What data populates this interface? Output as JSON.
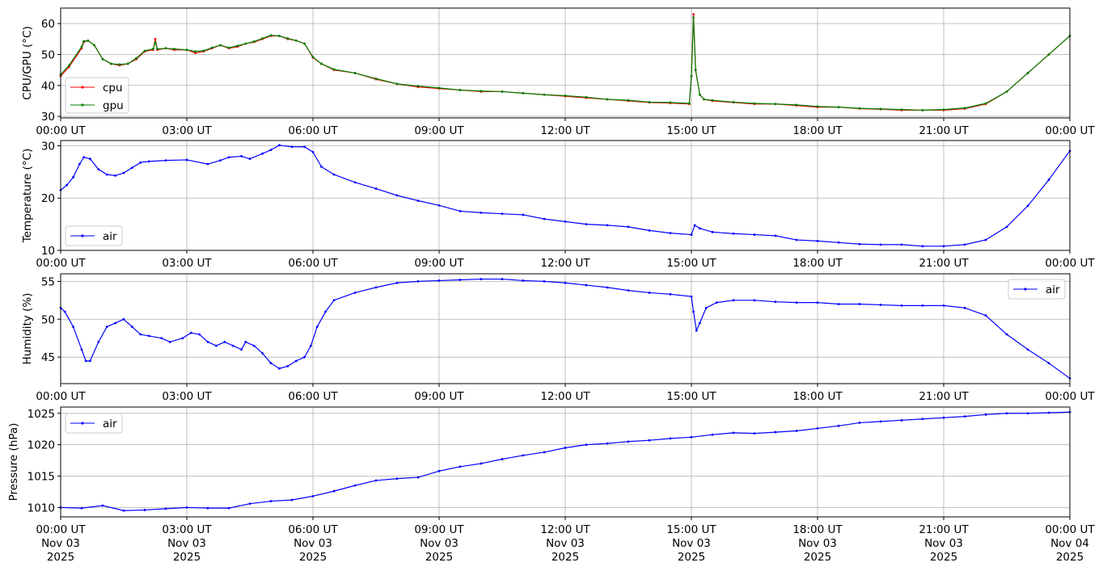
{
  "chart_data": [
    {
      "type": "line",
      "ylabel": "CPU/GPU (°C)",
      "xlim": [
        0,
        24
      ],
      "ylim": [
        29.5,
        65
      ],
      "yticks": [
        30,
        40,
        50,
        60
      ],
      "xtick_labels": [
        "00:00 UT",
        "03:00 UT",
        "06:00 UT",
        "09:00 UT",
        "12:00 UT",
        "15:00 UT",
        "18:00 UT",
        "21:00 UT",
        "00:00 UT"
      ],
      "grid": true,
      "legend": {
        "placement": "lower-left",
        "entries": [
          "cpu",
          "gpu"
        ]
      },
      "series": [
        {
          "name": "cpu",
          "color": "#ff0000",
          "x": [
            0,
            0.2,
            0.5,
            0.55,
            0.65,
            0.8,
            1.0,
            1.2,
            1.4,
            1.6,
            1.8,
            2.0,
            2.2,
            2.25,
            2.3,
            2.5,
            2.7,
            3.0,
            3.2,
            3.4,
            3.6,
            3.8,
            4.0,
            4.2,
            4.4,
            4.6,
            4.8,
            5.0,
            5.2,
            5.4,
            5.6,
            5.8,
            6.0,
            6.2,
            6.5,
            7.0,
            7.5,
            8.0,
            8.5,
            9.0,
            9.5,
            10.0,
            10.5,
            11.0,
            11.5,
            12.0,
            12.5,
            13.0,
            13.5,
            14.0,
            14.5,
            14.95,
            15.0,
            15.05,
            15.1,
            15.2,
            15.3,
            15.5,
            16.0,
            16.5,
            17.0,
            17.5,
            18.0,
            18.5,
            19.0,
            19.5,
            20.0,
            20.5,
            21.0,
            21.5,
            22.0,
            22.5,
            23.0,
            23.5,
            24.0
          ],
          "y": [
            43,
            46,
            52,
            54,
            54.5,
            53,
            48.5,
            47,
            46.5,
            47,
            48.5,
            51,
            51.5,
            55,
            51.5,
            52,
            51.5,
            51.5,
            50.5,
            51,
            52,
            53,
            52,
            52.5,
            53.5,
            54,
            55,
            56,
            56,
            55,
            54.5,
            53.5,
            49,
            47,
            45,
            44,
            42,
            40.5,
            39.5,
            39,
            38.5,
            38,
            38,
            37.5,
            37,
            36.5,
            36,
            35.5,
            35,
            34.5,
            34.3,
            34,
            43,
            63,
            45,
            37,
            35.5,
            35,
            34.5,
            34,
            34,
            33.5,
            33,
            33,
            32.5,
            32.3,
            32,
            32,
            32,
            32.5,
            34,
            38,
            44,
            50,
            56
          ]
        },
        {
          "name": "gpu",
          "color": "#008000",
          "x": [
            0,
            0.2,
            0.5,
            0.55,
            0.65,
            0.8,
            1.0,
            1.2,
            1.4,
            1.6,
            1.8,
            2.0,
            2.2,
            2.25,
            2.3,
            2.5,
            2.7,
            3.0,
            3.2,
            3.4,
            3.6,
            3.8,
            4.0,
            4.2,
            4.4,
            4.6,
            4.8,
            5.0,
            5.2,
            5.4,
            5.6,
            5.8,
            6.0,
            6.2,
            6.5,
            7.0,
            7.5,
            8.0,
            8.5,
            9.0,
            9.5,
            10.0,
            10.5,
            11.0,
            11.5,
            12.0,
            12.5,
            13.0,
            13.5,
            14.0,
            14.5,
            14.95,
            15.0,
            15.05,
            15.1,
            15.2,
            15.3,
            15.5,
            16.0,
            16.5,
            17.0,
            17.5,
            18.0,
            18.5,
            19.0,
            19.5,
            20.0,
            20.5,
            21.0,
            21.5,
            22.0,
            22.5,
            23.0,
            23.5,
            24.0
          ],
          "y": [
            43.5,
            46.5,
            52.5,
            54.3,
            54.5,
            53,
            48.5,
            47,
            46.8,
            47,
            48.8,
            51.2,
            51.8,
            54,
            51.8,
            52,
            51.8,
            51.5,
            51,
            51.2,
            52.2,
            53,
            52.2,
            52.8,
            53.5,
            54.2,
            55.2,
            56.2,
            56,
            55.2,
            54.5,
            53.5,
            49.2,
            47,
            45.2,
            44,
            42.2,
            40.5,
            39.8,
            39.2,
            38.5,
            38.2,
            38,
            37.5,
            37,
            36.7,
            36.2,
            35.5,
            35.2,
            34.6,
            34.5,
            34.2,
            43,
            62,
            45,
            37,
            35.5,
            35.2,
            34.6,
            34.2,
            34,
            33.7,
            33.2,
            33,
            32.6,
            32.4,
            32.2,
            32,
            32.2,
            32.7,
            34.2,
            38,
            44,
            50,
            56
          ]
        }
      ]
    },
    {
      "type": "line",
      "ylabel": "Temperature (°C)",
      "xlim": [
        0,
        24
      ],
      "ylim": [
        10,
        31
      ],
      "yticks": [
        10,
        20,
        30
      ],
      "xtick_labels": [
        "00:00 UT",
        "03:00 UT",
        "06:00 UT",
        "09:00 UT",
        "12:00 UT",
        "15:00 UT",
        "18:00 UT",
        "21:00 UT",
        "00:00 UT"
      ],
      "grid": true,
      "legend": {
        "placement": "lower-left",
        "entries": [
          "air"
        ]
      },
      "series": [
        {
          "name": "air",
          "color": "#0000ff",
          "x": [
            0,
            0.15,
            0.3,
            0.45,
            0.55,
            0.7,
            0.9,
            1.1,
            1.3,
            1.5,
            1.7,
            1.9,
            2.1,
            2.5,
            3.0,
            3.5,
            3.8,
            4.0,
            4.3,
            4.5,
            4.8,
            5.0,
            5.2,
            5.5,
            5.8,
            6.0,
            6.2,
            6.5,
            7.0,
            7.5,
            8.0,
            8.5,
            9.0,
            9.5,
            10.0,
            10.5,
            11.0,
            11.5,
            12.0,
            12.5,
            13.0,
            13.5,
            14.0,
            14.5,
            15.0,
            15.08,
            15.2,
            15.5,
            16.0,
            16.5,
            17.0,
            17.5,
            18.0,
            18.5,
            19.0,
            19.5,
            20.0,
            20.5,
            21.0,
            21.5,
            22.0,
            22.5,
            23.0,
            23.5,
            24.0
          ],
          "y": [
            21.5,
            22.5,
            24,
            26.5,
            27.8,
            27.5,
            25.5,
            24.5,
            24.3,
            24.8,
            25.8,
            26.8,
            27,
            27.2,
            27.3,
            26.5,
            27.2,
            27.8,
            28,
            27.5,
            28.5,
            29.2,
            30.1,
            29.8,
            29.8,
            28.8,
            26,
            24.5,
            23,
            21.8,
            20.5,
            19.5,
            18.6,
            17.5,
            17.2,
            17,
            16.8,
            16,
            15.5,
            15,
            14.8,
            14.5,
            13.8,
            13.3,
            13,
            14.8,
            14.2,
            13.5,
            13.2,
            13,
            12.8,
            12,
            11.8,
            11.5,
            11.2,
            11.1,
            11.1,
            10.8,
            10.8,
            11.1,
            12,
            14.5,
            18.5,
            23.5,
            29
          ]
        }
      ]
    },
    {
      "type": "line",
      "ylabel": "Humidity (%)",
      "xlim": [
        0,
        24
      ],
      "ylim": [
        41.5,
        56
      ],
      "yticks": [
        45,
        50,
        55
      ],
      "xtick_labels": [
        "00:00 UT",
        "03:00 UT",
        "06:00 UT",
        "09:00 UT",
        "12:00 UT",
        "15:00 UT",
        "18:00 UT",
        "21:00 UT",
        "00:00 UT"
      ],
      "grid": true,
      "legend": {
        "placement": "upper-right",
        "entries": [
          "air"
        ]
      },
      "series": [
        {
          "name": "air",
          "color": "#0000ff",
          "x": [
            0,
            0.1,
            0.3,
            0.5,
            0.6,
            0.7,
            0.9,
            1.1,
            1.3,
            1.5,
            1.7,
            1.9,
            2.1,
            2.4,
            2.6,
            2.9,
            3.1,
            3.3,
            3.5,
            3.7,
            3.9,
            4.1,
            4.3,
            4.4,
            4.6,
            4.8,
            5.0,
            5.2,
            5.4,
            5.6,
            5.8,
            5.95,
            6.1,
            6.3,
            6.5,
            7.0,
            7.5,
            8.0,
            8.5,
            9.0,
            9.5,
            10.0,
            10.5,
            11.0,
            11.5,
            12.0,
            12.5,
            13.0,
            13.5,
            14.0,
            14.5,
            15.0,
            15.05,
            15.12,
            15.2,
            15.35,
            15.6,
            16.0,
            16.5,
            17.0,
            17.5,
            18.0,
            18.5,
            19.0,
            19.5,
            20.0,
            20.5,
            21.0,
            21.5,
            22.0,
            22.5,
            23.0,
            23.5,
            24.0
          ],
          "y": [
            51.5,
            51,
            49,
            46,
            44.5,
            44.5,
            47,
            49,
            49.5,
            50,
            49,
            48,
            47.8,
            47.5,
            47,
            47.5,
            48.2,
            48,
            47,
            46.5,
            47,
            46.5,
            46,
            47,
            46.5,
            45.5,
            44.2,
            43.5,
            43.8,
            44.5,
            45,
            46.5,
            49,
            51,
            52.5,
            53.5,
            54.2,
            54.8,
            55,
            55.1,
            55.2,
            55.3,
            55.3,
            55.1,
            55,
            54.8,
            54.5,
            54.2,
            53.8,
            53.5,
            53.3,
            53,
            51,
            48.5,
            49.5,
            51.5,
            52.2,
            52.5,
            52.5,
            52.3,
            52.2,
            52.2,
            52,
            52,
            51.9,
            51.8,
            51.8,
            51.8,
            51.5,
            50.5,
            48,
            46,
            44.2,
            42.2
          ]
        }
      ]
    },
    {
      "type": "line",
      "ylabel": "Pressure (hPa)",
      "xlim": [
        0,
        24
      ],
      "ylim": [
        1008.5,
        1026
      ],
      "yticks": [
        1010,
        1015,
        1020,
        1025
      ],
      "xtick_labels": [
        "00:00 UT\nNov 03\n2025",
        "03:00 UT\nNov 03\n2025",
        "06:00 UT\nNov 03\n2025",
        "09:00 UT\nNov 03\n2025",
        "12:00 UT\nNov 03\n2025",
        "15:00 UT\nNov 03\n2025",
        "18:00 UT\nNov 03\n2025",
        "21:00 UT\nNov 03\n2025",
        "00:00 UT\nNov 04\n2025"
      ],
      "grid": true,
      "legend": {
        "placement": "upper-left",
        "entries": [
          "air"
        ]
      },
      "series": [
        {
          "name": "air",
          "color": "#0000ff",
          "x": [
            0,
            0.5,
            1.0,
            1.5,
            2.0,
            2.5,
            3.0,
            3.5,
            4.0,
            4.5,
            5.0,
            5.5,
            6.0,
            6.5,
            7.0,
            7.5,
            8.0,
            8.5,
            9.0,
            9.5,
            10.0,
            10.5,
            11.0,
            11.5,
            12.0,
            12.5,
            13.0,
            13.5,
            14.0,
            14.5,
            15.0,
            15.5,
            16.0,
            16.5,
            17.0,
            17.5,
            18.0,
            18.5,
            19.0,
            19.5,
            20.0,
            20.5,
            21.0,
            21.5,
            22.0,
            22.5,
            23.0,
            23.5,
            24.0
          ],
          "y": [
            1010,
            1009.9,
            1010.3,
            1009.5,
            1009.6,
            1009.8,
            1010,
            1009.9,
            1009.9,
            1010.6,
            1011,
            1011.2,
            1011.8,
            1012.6,
            1013.5,
            1014.3,
            1014.6,
            1014.8,
            1015.8,
            1016.5,
            1017,
            1017.7,
            1018.3,
            1018.8,
            1019.5,
            1020,
            1020.2,
            1020.5,
            1020.7,
            1021,
            1021.2,
            1021.6,
            1021.9,
            1021.8,
            1022,
            1022.2,
            1022.6,
            1023,
            1023.5,
            1023.7,
            1023.9,
            1024.1,
            1024.3,
            1024.5,
            1024.8,
            1025,
            1025,
            1025.1,
            1025.2
          ]
        }
      ]
    }
  ]
}
